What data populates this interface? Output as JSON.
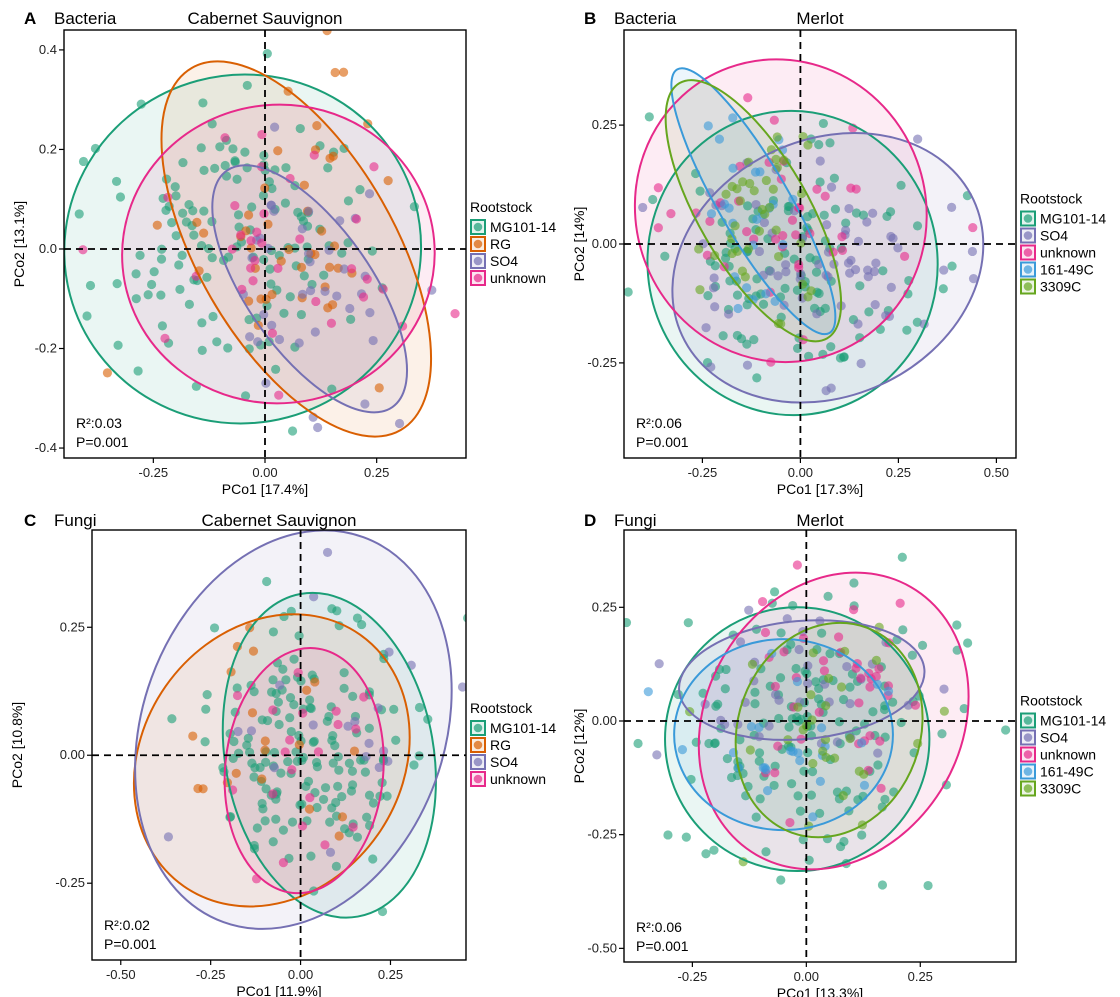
{
  "colors": {
    "MG101-14": "#1b9e77",
    "RG": "#d95f02",
    "SO4": "#7570b3",
    "unknown": "#e7298a",
    "161-49C": "#3a9ad9",
    "3309C": "#66a61e"
  },
  "chart_data": [
    {
      "type": "scatter",
      "letter": "A",
      "kingdom": "Bacteria",
      "cultivar": "Cabernet Sauvignon",
      "xlabel": "PCo1 [17.4%]",
      "ylabel": "PCo2 [13.1%]",
      "xlim": [
        -0.45,
        0.45
      ],
      "ylim": [
        -0.42,
        0.44
      ],
      "xticks": [
        -0.25,
        0,
        0.25
      ],
      "xticklabels": [
        "-0.25",
        "0.00",
        "0.25"
      ],
      "yticks": [
        -0.4,
        -0.2,
        0,
        0.2,
        0.4
      ],
      "yticklabels": [
        "-0.4",
        "-0.2",
        "0.0",
        "0.2",
        "0.4"
      ],
      "stat_r2": "R²:0.03",
      "stat_p": "P=0.001",
      "legend_title": "Rootstock",
      "legend": [
        "MG101-14",
        "RG",
        "SO4",
        "unknown"
      ],
      "ellipses": [
        {
          "group": "MG101-14",
          "cx": -0.05,
          "cy": 0.0,
          "rx": 0.4,
          "ry": 0.35,
          "angle": -15
        },
        {
          "group": "RG",
          "cx": 0.07,
          "cy": 0.0,
          "rx": 0.22,
          "ry": 0.42,
          "angle": -30
        },
        {
          "group": "SO4",
          "cx": 0.1,
          "cy": -0.08,
          "rx": 0.14,
          "ry": 0.29,
          "angle": -35
        },
        {
          "group": "unknown",
          "cx": 0.03,
          "cy": -0.01,
          "rx": 0.35,
          "ry": 0.3,
          "angle": -5
        }
      ],
      "points": [
        {
          "group": "MG101-14",
          "n": 140,
          "cx": -0.08,
          "cy": 0.03,
          "sx": 0.17,
          "sy": 0.14
        },
        {
          "group": "RG",
          "n": 45,
          "cx": 0.05,
          "cy": 0.05,
          "sx": 0.12,
          "sy": 0.16
        },
        {
          "group": "SO4",
          "n": 40,
          "cx": 0.12,
          "cy": -0.08,
          "sx": 0.09,
          "sy": 0.11
        },
        {
          "group": "unknown",
          "n": 35,
          "cx": 0.02,
          "cy": 0.0,
          "sx": 0.14,
          "sy": 0.12
        }
      ]
    },
    {
      "type": "scatter",
      "letter": "B",
      "kingdom": "Bacteria",
      "cultivar": "Merlot",
      "xlabel": "PCo1 [17.3%]",
      "ylabel": "PCo2 [14%]",
      "xlim": [
        -0.45,
        0.55
      ],
      "ylim": [
        -0.45,
        0.45
      ],
      "xticks": [
        -0.25,
        0,
        0.25,
        0.5
      ],
      "xticklabels": [
        "-0.25",
        "0.00",
        "0.25",
        "0.50"
      ],
      "yticks": [
        -0.25,
        0,
        0.25
      ],
      "yticklabels": [
        "-0.25",
        "0.00",
        "0.25"
      ],
      "stat_r2": "R²:0.06",
      "stat_p": "P=0.001",
      "legend_title": "Rootstock",
      "legend": [
        "MG101-14",
        "SO4",
        "unknown",
        "161-49C",
        "3309C"
      ],
      "ellipses": [
        {
          "group": "MG101-14",
          "cx": -0.02,
          "cy": -0.04,
          "rx": 0.37,
          "ry": 0.32,
          "angle": -5
        },
        {
          "group": "SO4",
          "cx": 0.07,
          "cy": -0.05,
          "rx": 0.41,
          "ry": 0.27,
          "angle": -25
        },
        {
          "group": "unknown",
          "cx": -0.05,
          "cy": 0.07,
          "rx": 0.37,
          "ry": 0.32,
          "angle": -20
        },
        {
          "group": "161-49C",
          "cx": -0.12,
          "cy": 0.09,
          "rx": 0.09,
          "ry": 0.32,
          "angle": -30
        },
        {
          "group": "3309C",
          "cx": -0.12,
          "cy": 0.07,
          "rx": 0.14,
          "ry": 0.31,
          "angle": -30
        }
      ],
      "points": [
        {
          "group": "MG101-14",
          "n": 110,
          "cx": -0.02,
          "cy": -0.03,
          "sx": 0.17,
          "sy": 0.13
        },
        {
          "group": "SO4",
          "n": 70,
          "cx": 0.08,
          "cy": -0.05,
          "sx": 0.17,
          "sy": 0.11
        },
        {
          "group": "unknown",
          "n": 40,
          "cx": -0.04,
          "cy": 0.06,
          "sx": 0.15,
          "sy": 0.13
        },
        {
          "group": "161-49C",
          "n": 25,
          "cx": -0.12,
          "cy": 0.08,
          "sx": 0.07,
          "sy": 0.12
        },
        {
          "group": "3309C",
          "n": 40,
          "cx": -0.12,
          "cy": 0.07,
          "sx": 0.08,
          "sy": 0.12
        }
      ]
    },
    {
      "type": "scatter",
      "letter": "C",
      "kingdom": "Fungi",
      "cultivar": "Cabernet Sauvignon",
      "xlabel": "PCo1 [11.9%]",
      "ylabel": "PCo2 [10.8%]",
      "xlim": [
        -0.58,
        0.46
      ],
      "ylim": [
        -0.4,
        0.44
      ],
      "xticks": [
        -0.5,
        -0.25,
        0,
        0.25
      ],
      "xticklabels": [
        "-0.50",
        "-0.25",
        "0.00",
        "0.25"
      ],
      "yticks": [
        -0.25,
        0,
        0.25
      ],
      "yticklabels": [
        "-0.25",
        "0.00",
        "0.25"
      ],
      "stat_r2": "R²:0.02",
      "stat_p": "P=0.001",
      "legend_title": "Rootstock",
      "legend": [
        "MG101-14",
        "RG",
        "SO4",
        "unknown"
      ],
      "ellipses": [
        {
          "group": "MG101-14",
          "cx": 0.08,
          "cy": 0.0,
          "rx": 0.29,
          "ry": 0.32,
          "angle": -10
        },
        {
          "group": "RG",
          "cx": -0.08,
          "cy": -0.01,
          "rx": 0.36,
          "ry": 0.3,
          "angle": 35
        },
        {
          "group": "SO4",
          "cx": -0.02,
          "cy": 0.05,
          "rx": 0.42,
          "ry": 0.4,
          "angle": 20
        },
        {
          "group": "unknown",
          "cx": 0.01,
          "cy": -0.03,
          "rx": 0.22,
          "ry": 0.24,
          "angle": 5
        }
      ],
      "points": [
        {
          "group": "MG101-14",
          "n": 160,
          "cx": 0.02,
          "cy": 0.0,
          "sx": 0.15,
          "sy": 0.13
        },
        {
          "group": "RG",
          "n": 20,
          "cx": -0.1,
          "cy": 0.0,
          "sx": 0.14,
          "sy": 0.12
        },
        {
          "group": "SO4",
          "n": 20,
          "cx": 0.08,
          "cy": 0.08,
          "sx": 0.16,
          "sy": 0.14
        },
        {
          "group": "unknown",
          "n": 20,
          "cx": 0.0,
          "cy": -0.02,
          "sx": 0.1,
          "sy": 0.11
        }
      ]
    },
    {
      "type": "scatter",
      "letter": "D",
      "kingdom": "Fungi",
      "cultivar": "Merlot",
      "xlabel": "PCo1 [13.3%]",
      "ylabel": "PCo2 [12%]",
      "xlim": [
        -0.4,
        0.46
      ],
      "ylim": [
        -0.53,
        0.42
      ],
      "xticks": [
        -0.25,
        0,
        0.25
      ],
      "xticklabels": [
        "-0.25",
        "0.00",
        "0.25"
      ],
      "yticks": [
        -0.5,
        -0.25,
        0,
        0.25
      ],
      "yticklabels": [
        "-0.50",
        "-0.25",
        "0.00",
        "0.25"
      ],
      "stat_r2": "R²:0.06",
      "stat_p": "P=0.001",
      "legend_title": "Rootstock",
      "legend": [
        "MG101-14",
        "SO4",
        "unknown",
        "161-49C",
        "3309C"
      ],
      "ellipses": [
        {
          "group": "MG101-14",
          "cx": -0.02,
          "cy": -0.04,
          "rx": 0.29,
          "ry": 0.29,
          "angle": 0
        },
        {
          "group": "SO4",
          "cx": -0.01,
          "cy": 0.09,
          "rx": 0.27,
          "ry": 0.13,
          "angle": -5
        },
        {
          "group": "unknown",
          "cx": 0.06,
          "cy": 0.0,
          "rx": 0.28,
          "ry": 0.34,
          "angle": 30
        },
        {
          "group": "161-49C",
          "cx": -0.05,
          "cy": -0.03,
          "rx": 0.24,
          "ry": 0.21,
          "angle": 0
        },
        {
          "group": "3309C",
          "cx": 0.05,
          "cy": -0.02,
          "rx": 0.2,
          "ry": 0.24,
          "angle": 20
        }
      ],
      "points": [
        {
          "group": "MG101-14",
          "n": 150,
          "cx": -0.01,
          "cy": -0.02,
          "sx": 0.16,
          "sy": 0.15
        },
        {
          "group": "SO4",
          "n": 35,
          "cx": -0.03,
          "cy": 0.08,
          "sx": 0.13,
          "sy": 0.07
        },
        {
          "group": "unknown",
          "n": 40,
          "cx": 0.08,
          "cy": 0.05,
          "sx": 0.12,
          "sy": 0.12
        },
        {
          "group": "161-49C",
          "n": 25,
          "cx": -0.08,
          "cy": -0.03,
          "sx": 0.11,
          "sy": 0.1
        },
        {
          "group": "3309C",
          "n": 30,
          "cx": 0.05,
          "cy": -0.02,
          "sx": 0.11,
          "sy": 0.11
        }
      ]
    }
  ]
}
